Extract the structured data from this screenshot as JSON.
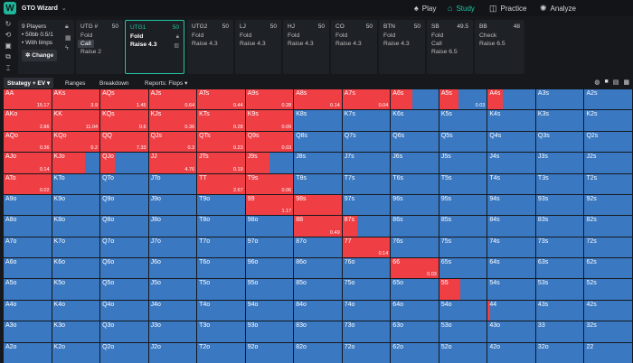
{
  "app": {
    "title": "GTO Wizard",
    "logo_letter": "W"
  },
  "nav": [
    {
      "label": "Play",
      "icon": "spade-icon",
      "glyph": "♠"
    },
    {
      "label": "Study",
      "icon": "graduation-cap-icon",
      "glyph": "🎓"
    },
    {
      "label": "Practice",
      "icon": "gamepad-icon",
      "glyph": "🎮"
    },
    {
      "label": "Analyze",
      "icon": "bulb-icon",
      "glyph": "✺"
    }
  ],
  "players_panel": {
    "players": "9 Players",
    "stakes": "• 50bb 0.5/1",
    "limps": "• With limps",
    "change": "Change"
  },
  "positions": [
    {
      "name": "UTG #",
      "stack": "50",
      "actions": [
        "Fold",
        "Call",
        "Raise 2"
      ],
      "selected": "Call"
    },
    {
      "name": "UTG1",
      "stack": "50",
      "actions": [
        "Fold",
        "Raise 4.3"
      ],
      "selected": "",
      "active": true
    },
    {
      "name": "UTG2",
      "stack": "50",
      "actions": [
        "Fold",
        "Raise 4.3"
      ],
      "selected": ""
    },
    {
      "name": "LJ",
      "stack": "50",
      "actions": [
        "Fold",
        "Raise 4.3"
      ],
      "selected": ""
    },
    {
      "name": "HJ",
      "stack": "50",
      "actions": [
        "Fold",
        "Raise 4.3"
      ],
      "selected": ""
    },
    {
      "name": "CO",
      "stack": "50",
      "actions": [
        "Fold",
        "Raise 4.3"
      ],
      "selected": ""
    },
    {
      "name": "BTN",
      "stack": "50",
      "actions": [
        "Fold",
        "Raise 4.3"
      ],
      "selected": ""
    },
    {
      "name": "SB",
      "stack": "49.5",
      "actions": [
        "Fold",
        "Call",
        "Raise 6.5"
      ],
      "selected": ""
    },
    {
      "name": "BB",
      "stack": "48",
      "actions": [
        "Check",
        "Raise 6.5"
      ],
      "selected": ""
    }
  ],
  "tabs": [
    "Strategy + EV",
    "Ranges",
    "Breakdown",
    "Reports: Flops"
  ],
  "colors": {
    "raise": "#ef3f45",
    "fold": "#3a78c2",
    "accent": "#22c7a5"
  },
  "matrix": {
    "ranks": [
      "A",
      "K",
      "Q",
      "J",
      "T",
      "9",
      "8",
      "7",
      "6",
      "5",
      "4",
      "3",
      "2"
    ],
    "raise_freq": [
      [
        1,
        1,
        1,
        1,
        1,
        1,
        1,
        1,
        0.45,
        0.4,
        0.32,
        0,
        0
      ],
      [
        1,
        1,
        1,
        1,
        1,
        1,
        0,
        0,
        0,
        0,
        0,
        0,
        0
      ],
      [
        1,
        1,
        1,
        1,
        1,
        1,
        0,
        0,
        0,
        0,
        0,
        0,
        0
      ],
      [
        1,
        0.7,
        0.3,
        1,
        1,
        0.5,
        0,
        0,
        0,
        0,
        0,
        0,
        0
      ],
      [
        1,
        0,
        0,
        0,
        1,
        1,
        0,
        0,
        0,
        0,
        0,
        0,
        0
      ],
      [
        0,
        0,
        0,
        0,
        0,
        1,
        1,
        0,
        0,
        0,
        0,
        0,
        0
      ],
      [
        0,
        0,
        0,
        0,
        0,
        0,
        1,
        0.3,
        0,
        0,
        0,
        0,
        0
      ],
      [
        0,
        0,
        0,
        0,
        0,
        0,
        0,
        1,
        0,
        0,
        0,
        0,
        0
      ],
      [
        0,
        0,
        0,
        0,
        0,
        0,
        0,
        0,
        1,
        0,
        0,
        0,
        0
      ],
      [
        0,
        0,
        0,
        0,
        0,
        0,
        0,
        0,
        0,
        0.45,
        0,
        0,
        0
      ],
      [
        0,
        0,
        0,
        0,
        0,
        0,
        0,
        0,
        0,
        0,
        0.05,
        0,
        0
      ],
      [
        0,
        0,
        0,
        0,
        0,
        0,
        0,
        0,
        0,
        0,
        0,
        0,
        0
      ],
      [
        0,
        0,
        0,
        0,
        0,
        0,
        0,
        0,
        0,
        0,
        0,
        0,
        0
      ]
    ],
    "ev": {
      "AA": "15.17",
      "AKs": "3.9",
      "AQs": "1.45",
      "AJs": "0.64",
      "ATs": "0.44",
      "A9s": "0.28",
      "A8s": "0.14",
      "A7s": "0.04",
      "A5s": "0.03",
      "AKo": "2.86",
      "KK": "11.04",
      "KQs": "0.6",
      "KJs": "0.36",
      "KTs": "0.28",
      "K9s": "0.09",
      "AQo": "0.36",
      "KQo": "0.2",
      "QQ": "7.33",
      "QJs": "0.3",
      "QTs": "0.23",
      "Q9s": "0.03",
      "AJo": "0.14",
      "JJ": "4.76",
      "JTs": "0.19",
      "ATo": "0.02",
      "TT": "2.67",
      "T9s": "0.06",
      "99": "1.17",
      "88": "0.49",
      "77": "0.14",
      "66": "0.03"
    }
  }
}
